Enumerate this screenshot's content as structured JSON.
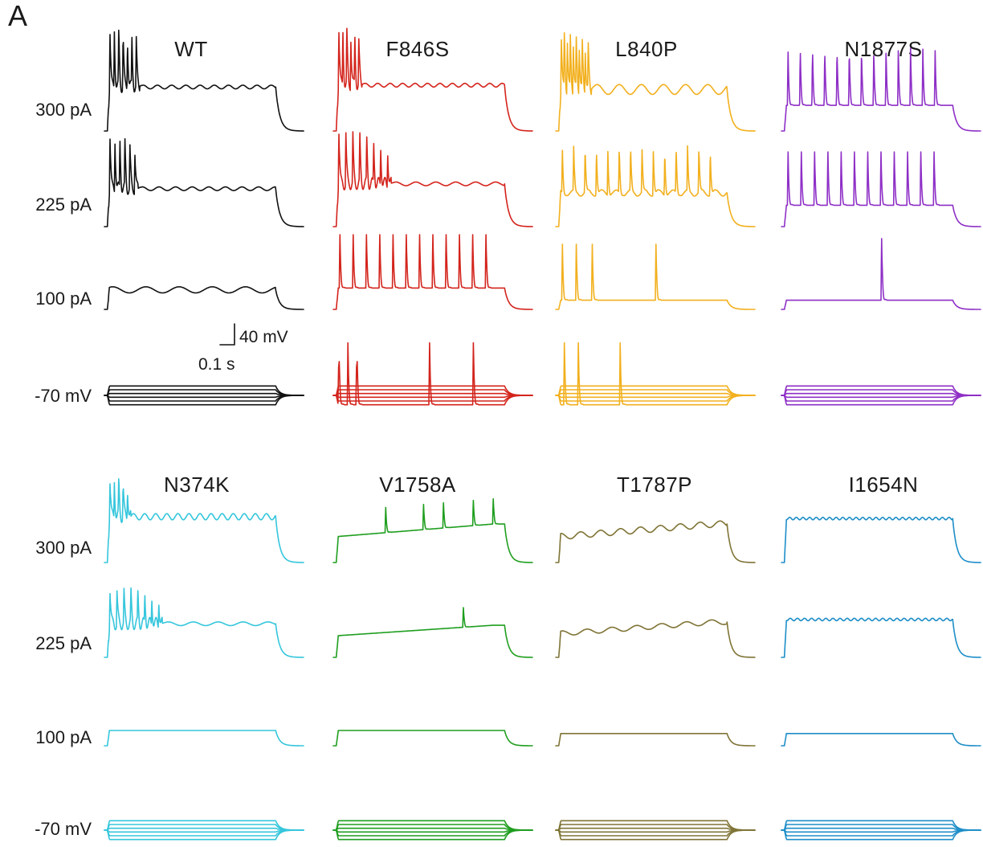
{
  "panel_label": "A",
  "scale_bar": {
    "voltage_label": "40 mV",
    "time_label": "0.1 s"
  },
  "groups": [
    {
      "row_labels": [
        "300 pA",
        "225 pA",
        "100 pA",
        "-70 mV"
      ],
      "columns": [
        {
          "title": "WT",
          "color": "#111111",
          "traces": [
            {
              "type": "burst",
              "spikes": 7,
              "isi": 0.022,
              "osc": 14,
              "plateau": 0.72,
              "amp": 1.0,
              "decay": 0.06
            },
            {
              "type": "burst",
              "spikes": 6,
              "isi": 0.025,
              "osc": 12,
              "plateau": 0.62,
              "amp": 0.95,
              "decay": 0.05
            },
            {
              "type": "plateau",
              "plateau": 0.32,
              "osc": 6,
              "oscAmp": 0.05
            },
            {
              "type": "family",
              "lines": 6,
              "spread": 1.0
            }
          ]
        },
        {
          "title": "F846S",
          "color": "#d3241c",
          "traces": [
            {
              "type": "burst",
              "spikes": 6,
              "isi": 0.02,
              "osc": 16,
              "plateau": 0.75,
              "amp": 1.0,
              "decay": 0.05
            },
            {
              "type": "burst",
              "spikes": 8,
              "isi": 0.035,
              "osc": 10,
              "plateau": 0.7,
              "amp": 0.95,
              "decay": 0.06
            },
            {
              "type": "train",
              "spikes": 12,
              "plateau": 0.35,
              "amp": 0.95
            },
            {
              "type": "family",
              "lines": 6,
              "spread": 1.0,
              "spikeTimes": [
                0.025,
                0.07,
                0.115,
                0.48,
                0.7
              ],
              "spikeLine": 0
            }
          ]
        },
        {
          "title": "L840P",
          "color": "#f2b01e",
          "traces": [
            {
              "type": "burst",
              "spikes": 10,
              "isi": 0.015,
              "osc": 9,
              "plateau": 0.68,
              "amp": 0.95,
              "decay": 0.04,
              "oscAmp": 0.08
            },
            {
              "type": "train",
              "spikes": 14,
              "plateau": 0.55,
              "amp": 0.75,
              "slow": true
            },
            {
              "type": "sparse",
              "spikeTimes": [
                0.03,
                0.1,
                0.18,
                0.5
              ],
              "plateau": 0.15,
              "amp": 1.0
            },
            {
              "type": "family",
              "lines": 6,
              "spread": 1.0,
              "spikeTimes": [
                0.04,
                0.11,
                0.32
              ],
              "spikeLine": 0
            }
          ]
        },
        {
          "title": "N1877S",
          "color": "#8e2fc6",
          "traces": [
            {
              "type": "train",
              "spikes": 13,
              "plateau": 0.42,
              "amp": 0.95
            },
            {
              "type": "train",
              "spikes": 12,
              "plateau": 0.35,
              "amp": 0.95
            },
            {
              "type": "sparse",
              "spikeTimes": [
                0.5
              ],
              "plateau": 0.15,
              "amp": 1.1
            },
            {
              "type": "family",
              "lines": 6,
              "spread": 1.0
            }
          ]
        }
      ]
    },
    {
      "row_labels": [
        "300 pA",
        "225 pA",
        "100 pA",
        "-70 mV"
      ],
      "columns": [
        {
          "title": "N374K",
          "color": "#35c6dc",
          "traces": [
            {
              "type": "burst",
              "spikes": 5,
              "isi": 0.022,
              "osc": 18,
              "plateau": 0.75,
              "amp": 0.65,
              "decay": 0.06,
              "oscAmp": 0.05
            },
            {
              "type": "burst",
              "spikes": 8,
              "isi": 0.035,
              "osc": 8,
              "plateau": 0.55,
              "amp": 0.6,
              "decay": 0.08
            },
            {
              "type": "plateau",
              "plateau": 0.25,
              "osc": 0,
              "oscAmp": 0.0
            },
            {
              "type": "family",
              "lines": 6,
              "spread": 1.0
            }
          ]
        },
        {
          "title": "V1758A",
          "color": "#1f9e1f",
          "traces": [
            {
              "type": "sparse",
              "spikeTimes": [
                0.26,
                0.45,
                0.55,
                0.7,
                0.8
              ],
              "plateau": 0.6,
              "amp": 0.45,
              "rising": true
            },
            {
              "type": "sparse",
              "spikeTimes": [
                0.65
              ],
              "plateau": 0.5,
              "amp": 0.35,
              "rising": true
            },
            {
              "type": "plateau",
              "plateau": 0.25,
              "osc": 0,
              "oscAmp": 0.0
            },
            {
              "type": "family",
              "lines": 6,
              "spread": 1.0
            }
          ]
        },
        {
          "title": "T1787P",
          "color": "#7f7436",
          "traces": [
            {
              "type": "plateau",
              "plateau": 0.6,
              "osc": 10,
              "oscAmp": 0.05,
              "rising": true
            },
            {
              "type": "plateau",
              "plateau": 0.55,
              "osc": 8,
              "oscAmp": 0.04,
              "rising": true
            },
            {
              "type": "plateau",
              "plateau": 0.2,
              "osc": 0,
              "oscAmp": 0.0
            },
            {
              "type": "family",
              "lines": 6,
              "spread": 1.0
            }
          ]
        },
        {
          "title": "I1654N",
          "color": "#1e8ec8",
          "traces": [
            {
              "type": "plateau",
              "plateau": 0.72,
              "osc": 30,
              "oscAmp": 0.02
            },
            {
              "type": "plateau",
              "plateau": 0.62,
              "osc": 28,
              "oscAmp": 0.02
            },
            {
              "type": "plateau",
              "plateau": 0.2,
              "osc": 0,
              "oscAmp": 0.0
            },
            {
              "type": "family",
              "lines": 6,
              "spread": 1.0
            }
          ]
        }
      ]
    }
  ]
}
